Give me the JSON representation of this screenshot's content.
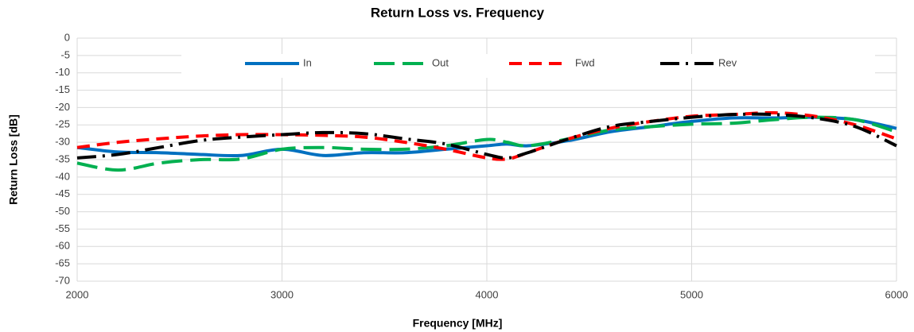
{
  "chart_data": {
    "type": "line",
    "title": "Return Loss vs. Frequency",
    "x_label": "Frequency [MHz]",
    "y_label": "Return Loss [dB]",
    "x": [
      2000,
      2200,
      2400,
      2600,
      2800,
      3000,
      3200,
      3400,
      3600,
      3800,
      4000,
      4100,
      4200,
      4400,
      4600,
      4800,
      5000,
      5200,
      5400,
      5600,
      5800,
      6000
    ],
    "series": [
      {
        "name": "In",
        "color": "#0070c0",
        "dash": "solid",
        "values": [
          -31.5,
          -32.8,
          -33,
          -33.5,
          -33.8,
          -32,
          -33.8,
          -33,
          -33,
          -32,
          -31,
          -30.5,
          -31,
          -29.5,
          -27,
          -25.5,
          -24,
          -23,
          -23,
          -22.8,
          -23.5,
          -26
        ]
      },
      {
        "name": "Out",
        "color": "#00b050",
        "dash": "dashed",
        "values": [
          -36,
          -38,
          -36,
          -35,
          -34.8,
          -32,
          -31.5,
          -32,
          -32,
          -31,
          -29.2,
          -30,
          -31,
          -29,
          -26.5,
          -25.5,
          -24.8,
          -24.5,
          -23.5,
          -22.8,
          -23.5,
          -27
        ]
      },
      {
        "name": "Fwd",
        "color": "#ff0000",
        "dash": "short-dashed",
        "values": [
          -31.5,
          -30,
          -29,
          -28.2,
          -27.8,
          -27.8,
          -28,
          -28.5,
          -30,
          -32,
          -34.5,
          -34.8,
          -33,
          -29,
          -26,
          -24,
          -22.5,
          -22,
          -21.5,
          -22.5,
          -25,
          -29
        ]
      },
      {
        "name": "Rev",
        "color": "#000000",
        "dash": "dash-dot",
        "values": [
          -34.5,
          -33.5,
          -31.5,
          -29.5,
          -28.5,
          -27.8,
          -27.2,
          -27.5,
          -29,
          -30.5,
          -33.5,
          -34.5,
          -33,
          -29,
          -25.5,
          -24,
          -22.8,
          -22,
          -22,
          -23,
          -25.5,
          -31
        ]
      }
    ],
    "xlim": [
      2000,
      6000
    ],
    "xticks": [
      2000,
      3000,
      4000,
      5000,
      6000
    ],
    "ylim": [
      -70,
      0
    ],
    "yticks": [
      0,
      -5,
      -10,
      -15,
      -20,
      -25,
      -30,
      -35,
      -40,
      -45,
      -50,
      -55,
      -60,
      -65,
      -70
    ],
    "grid": true,
    "legend": "top"
  }
}
